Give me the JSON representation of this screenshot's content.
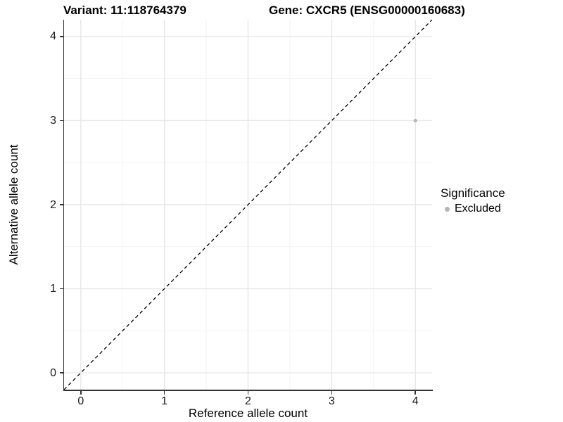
{
  "header": {
    "variant_title": "Variant: 11:118764379",
    "gene_title": "Gene: CXCR5 (ENSG00000160683)"
  },
  "chart_data": {
    "type": "scatter",
    "title": "Variant: 11:118764379  Gene: CXCR5 (ENSG00000160683)",
    "xlabel": "Reference allele count",
    "ylabel": "Alternative allele count",
    "xlim": [
      -0.2,
      4.2
    ],
    "ylim": [
      -0.2,
      4.2
    ],
    "x_ticks": [
      0,
      1,
      2,
      3,
      4
    ],
    "y_ticks": [
      0,
      1,
      2,
      3,
      4
    ],
    "x_minor_ticks": [
      0.5,
      1.5,
      2.5,
      3.5
    ],
    "y_minor_ticks": [
      0.5,
      1.5,
      2.5,
      3.5
    ],
    "grid": true,
    "identity_line": {
      "style": "dashed",
      "from": [
        -0.2,
        -0.2
      ],
      "to": [
        4.2,
        4.2
      ]
    },
    "points": [
      {
        "x": 4,
        "y": 3,
        "significance": "Excluded",
        "color": "#b5b5b5"
      }
    ],
    "legend": {
      "title": "Significance",
      "position": "right",
      "entries": [
        {
          "label": "Excluded",
          "color": "#b5b5b5"
        }
      ]
    }
  },
  "colors": {
    "background": "#ffffff",
    "axis_line": "#333333",
    "grid_major": "#e7e7e7",
    "grid_minor": "#f3f3f3",
    "tick_label": "#1a1a1a",
    "identity_line": "#000000"
  }
}
